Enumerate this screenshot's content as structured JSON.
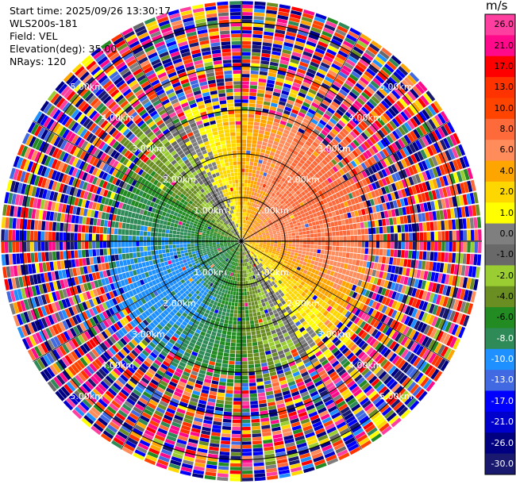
{
  "header": {
    "start_time": "Start time: 2025/09/26 13:30:17",
    "instrument": "WLS200s-181",
    "field": "Field: VEL",
    "elevation": "Elevation(deg): 35.00",
    "nrays": "NRays: 120"
  },
  "colorbar": {
    "unit": "m/s",
    "tick_labels": [
      "26.0",
      "21.0",
      "17.0",
      "13.0",
      "10.0",
      "8.0",
      "6.0",
      "4.0",
      "2.0",
      "1.0",
      "0.0",
      "-1.0",
      "-2.0",
      "-4.0",
      "-6.0",
      "-8.0",
      "-10.0",
      "-13.0",
      "-17.0",
      "-21.0",
      "-26.0",
      "-30.0"
    ],
    "colors": [
      "#ff3fa0",
      "#ff0a8a",
      "#ff0000",
      "#ff3300",
      "#ff4400",
      "#ff6a3a",
      "#ff8c5a",
      "#ffa500",
      "#ffd700",
      "#ffff00",
      "#7f7f7f",
      "#696969",
      "#9acd32",
      "#6b8e23",
      "#228b22",
      "#2e8b57",
      "#1e90ff",
      "#4169e1",
      "#0000ff",
      "#0000cd",
      "#000080",
      "#191970"
    ]
  },
  "chart_data": {
    "type": "heatmap",
    "subtype": "polar_ppi",
    "field": "VEL",
    "units": "m/s",
    "nrays": 120,
    "elevation_deg": 35.0,
    "range_rings_km": [
      1.0,
      2.0,
      3.0,
      4.0,
      5.0
    ],
    "ring_labels": [
      "1.00km",
      "2.00km",
      "3.00km",
      "4.00km",
      "5.00km"
    ],
    "colorbar_range": [
      -30.0,
      30.0
    ],
    "pattern": {
      "wind_from_deg": 240,
      "wind_speed_ms": 9,
      "coherent_range_km": 2.6,
      "noise_outside": true
    }
  }
}
